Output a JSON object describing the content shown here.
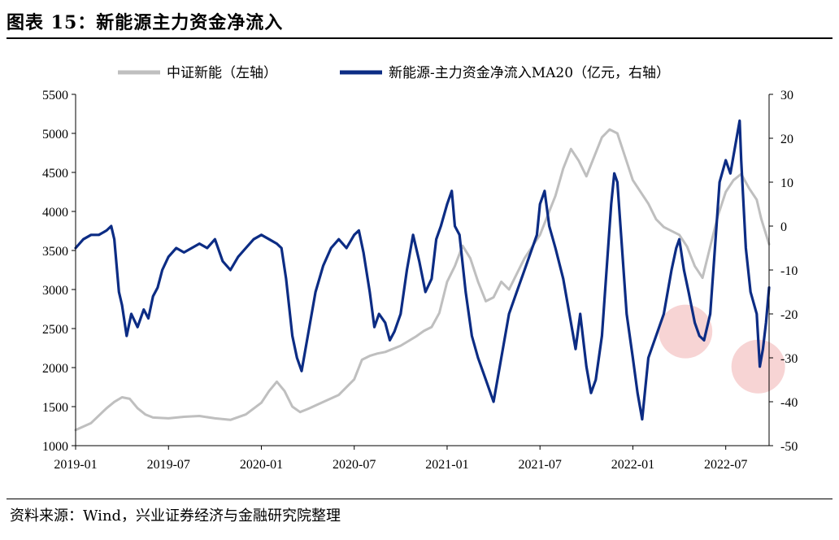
{
  "title": "图表 15：新能源主力资金净流入",
  "source": "资料来源：Wind，兴业证券经济与金融研究院整理",
  "chart_data": {
    "type": "line",
    "title": "",
    "xlabel": "",
    "x_tick_labels": [
      "2019-01",
      "2019-07",
      "2020-01",
      "2020-07",
      "2021-01",
      "2021-07",
      "2022-01",
      "2022-07"
    ],
    "x_tick_months": [
      0,
      6,
      12,
      18,
      24,
      30,
      36,
      42
    ],
    "x_range_months": [
      0,
      44.8
    ],
    "y_left": {
      "range": [
        1000,
        5500
      ],
      "ticks": [
        1000,
        1500,
        2000,
        2500,
        3000,
        3500,
        4000,
        4500,
        5000,
        5500
      ],
      "label": ""
    },
    "y_right": {
      "range": [
        -50,
        30
      ],
      "ticks": [
        -50,
        -40,
        -30,
        -20,
        -10,
        0,
        10,
        20,
        30
      ],
      "label": ""
    },
    "legend_position": "top",
    "grid": false,
    "series": [
      {
        "name": "中证新能（左轴）",
        "axis": "left",
        "color": "#bfbfbf",
        "points": [
          [
            0,
            1200
          ],
          [
            1,
            1290
          ],
          [
            2,
            1480
          ],
          [
            2.5,
            1560
          ],
          [
            3,
            1620
          ],
          [
            3.5,
            1600
          ],
          [
            4,
            1480
          ],
          [
            4.5,
            1400
          ],
          [
            5,
            1360
          ],
          [
            6,
            1350
          ],
          [
            7,
            1370
          ],
          [
            8,
            1380
          ],
          [
            9,
            1350
          ],
          [
            10,
            1330
          ],
          [
            11,
            1400
          ],
          [
            12,
            1550
          ],
          [
            12.5,
            1700
          ],
          [
            13,
            1820
          ],
          [
            13.5,
            1700
          ],
          [
            14,
            1500
          ],
          [
            14.5,
            1430
          ],
          [
            15,
            1470
          ],
          [
            16,
            1560
          ],
          [
            17,
            1650
          ],
          [
            18,
            1850
          ],
          [
            18.5,
            2100
          ],
          [
            19,
            2150
          ],
          [
            19.5,
            2180
          ],
          [
            20,
            2200
          ],
          [
            21,
            2280
          ],
          [
            22,
            2400
          ],
          [
            22.5,
            2470
          ],
          [
            23,
            2520
          ],
          [
            23.5,
            2700
          ],
          [
            24,
            3100
          ],
          [
            24.5,
            3300
          ],
          [
            25,
            3560
          ],
          [
            25.5,
            3400
          ],
          [
            26,
            3100
          ],
          [
            26.5,
            2850
          ],
          [
            27,
            2900
          ],
          [
            27.5,
            3100
          ],
          [
            28,
            3000
          ],
          [
            28.5,
            3200
          ],
          [
            29,
            3400
          ],
          [
            30,
            3700
          ],
          [
            31,
            4200
          ],
          [
            31.5,
            4550
          ],
          [
            32,
            4800
          ],
          [
            32.5,
            4650
          ],
          [
            33,
            4450
          ],
          [
            33.5,
            4700
          ],
          [
            34,
            4950
          ],
          [
            34.5,
            5050
          ],
          [
            35,
            5000
          ],
          [
            35.5,
            4700
          ],
          [
            36,
            4400
          ],
          [
            37,
            4100
          ],
          [
            37.5,
            3900
          ],
          [
            38,
            3800
          ],
          [
            39,
            3700
          ],
          [
            39.5,
            3550
          ],
          [
            40,
            3300
          ],
          [
            40.5,
            3150
          ],
          [
            41,
            3550
          ],
          [
            41.5,
            3950
          ],
          [
            42,
            4250
          ],
          [
            42.5,
            4400
          ],
          [
            43,
            4480
          ],
          [
            43.5,
            4300
          ],
          [
            44,
            4150
          ],
          [
            44.3,
            3900
          ],
          [
            44.8,
            3580
          ]
        ]
      },
      {
        "name": "新能源-主力资金净流入MA20（亿元，右轴）",
        "axis": "right",
        "color": "#0c2c84",
        "points": [
          [
            0,
            -5
          ],
          [
            0.5,
            -3
          ],
          [
            1,
            -2
          ],
          [
            1.5,
            -2
          ],
          [
            2,
            -1
          ],
          [
            2.3,
            0
          ],
          [
            2.5,
            -3
          ],
          [
            2.8,
            -15
          ],
          [
            3,
            -18
          ],
          [
            3.3,
            -25
          ],
          [
            3.6,
            -20
          ],
          [
            4,
            -23
          ],
          [
            4.4,
            -19
          ],
          [
            4.7,
            -21
          ],
          [
            5,
            -16
          ],
          [
            5.3,
            -14
          ],
          [
            5.6,
            -10
          ],
          [
            6,
            -7
          ],
          [
            6.5,
            -5
          ],
          [
            7,
            -6
          ],
          [
            7.5,
            -5
          ],
          [
            8,
            -4
          ],
          [
            8.5,
            -5
          ],
          [
            9,
            -3
          ],
          [
            9.5,
            -8
          ],
          [
            10,
            -10
          ],
          [
            10.5,
            -7
          ],
          [
            11,
            -5
          ],
          [
            11.5,
            -3
          ],
          [
            12,
            -2
          ],
          [
            12.5,
            -3
          ],
          [
            13,
            -4
          ],
          [
            13.3,
            -5
          ],
          [
            13.6,
            -12
          ],
          [
            14,
            -25
          ],
          [
            14.3,
            -30
          ],
          [
            14.6,
            -33
          ],
          [
            15,
            -25
          ],
          [
            15.5,
            -15
          ],
          [
            16,
            -9
          ],
          [
            16.5,
            -5
          ],
          [
            17,
            -3
          ],
          [
            17.5,
            -5
          ],
          [
            18,
            -2
          ],
          [
            18.3,
            -1
          ],
          [
            18.6,
            -6
          ],
          [
            19,
            -15
          ],
          [
            19.3,
            -23
          ],
          [
            19.6,
            -20
          ],
          [
            20,
            -22
          ],
          [
            20.3,
            -26
          ],
          [
            20.6,
            -24
          ],
          [
            21,
            -20
          ],
          [
            21.4,
            -10
          ],
          [
            21.8,
            -2
          ],
          [
            22.2,
            -8
          ],
          [
            22.6,
            -15
          ],
          [
            23,
            -12
          ],
          [
            23.3,
            -3
          ],
          [
            23.6,
            0
          ],
          [
            24,
            5
          ],
          [
            24.3,
            8
          ],
          [
            24.5,
            0
          ],
          [
            24.8,
            -2
          ],
          [
            25.2,
            -15
          ],
          [
            25.6,
            -25
          ],
          [
            26,
            -30
          ],
          [
            26.5,
            -35
          ],
          [
            27,
            -40
          ],
          [
            27.5,
            -30
          ],
          [
            28,
            -20
          ],
          [
            28.5,
            -15
          ],
          [
            29,
            -10
          ],
          [
            29.5,
            -5
          ],
          [
            29.8,
            -2
          ],
          [
            30,
            5
          ],
          [
            30.3,
            8
          ],
          [
            30.6,
            0
          ],
          [
            31,
            -5
          ],
          [
            31.5,
            -12
          ],
          [
            32,
            -22
          ],
          [
            32.3,
            -28
          ],
          [
            32.6,
            -20
          ],
          [
            33,
            -32
          ],
          [
            33.3,
            -38
          ],
          [
            33.6,
            -35
          ],
          [
            34,
            -25
          ],
          [
            34.3,
            -10
          ],
          [
            34.6,
            5
          ],
          [
            34.8,
            12
          ],
          [
            35,
            10
          ],
          [
            35.3,
            -5
          ],
          [
            35.6,
            -20
          ],
          [
            36,
            -30
          ],
          [
            36.3,
            -38
          ],
          [
            36.6,
            -44
          ],
          [
            37,
            -30
          ],
          [
            37.5,
            -25
          ],
          [
            38,
            -20
          ],
          [
            38.5,
            -10
          ],
          [
            38.8,
            -5
          ],
          [
            39,
            -3
          ],
          [
            39.3,
            -10
          ],
          [
            39.6,
            -15
          ],
          [
            40,
            -22
          ],
          [
            40.3,
            -25
          ],
          [
            40.6,
            -26
          ],
          [
            41,
            -20
          ],
          [
            41.3,
            -5
          ],
          [
            41.6,
            10
          ],
          [
            42,
            15
          ],
          [
            42.3,
            12
          ],
          [
            42.6,
            18
          ],
          [
            42.9,
            24
          ],
          [
            43,
            15
          ],
          [
            43.3,
            -5
          ],
          [
            43.6,
            -15
          ],
          [
            44,
            -20
          ],
          [
            44.2,
            -32
          ],
          [
            44.4,
            -28
          ],
          [
            44.6,
            -22
          ],
          [
            44.8,
            -14
          ]
        ]
      }
    ],
    "annotations": [
      {
        "shape": "circle",
        "color": "#f4c6c6",
        "x_month": 39.4,
        "y_right": -24
      },
      {
        "shape": "circle",
        "color": "#f4c6c6",
        "x_month": 44.1,
        "y_right": -32
      }
    ]
  }
}
